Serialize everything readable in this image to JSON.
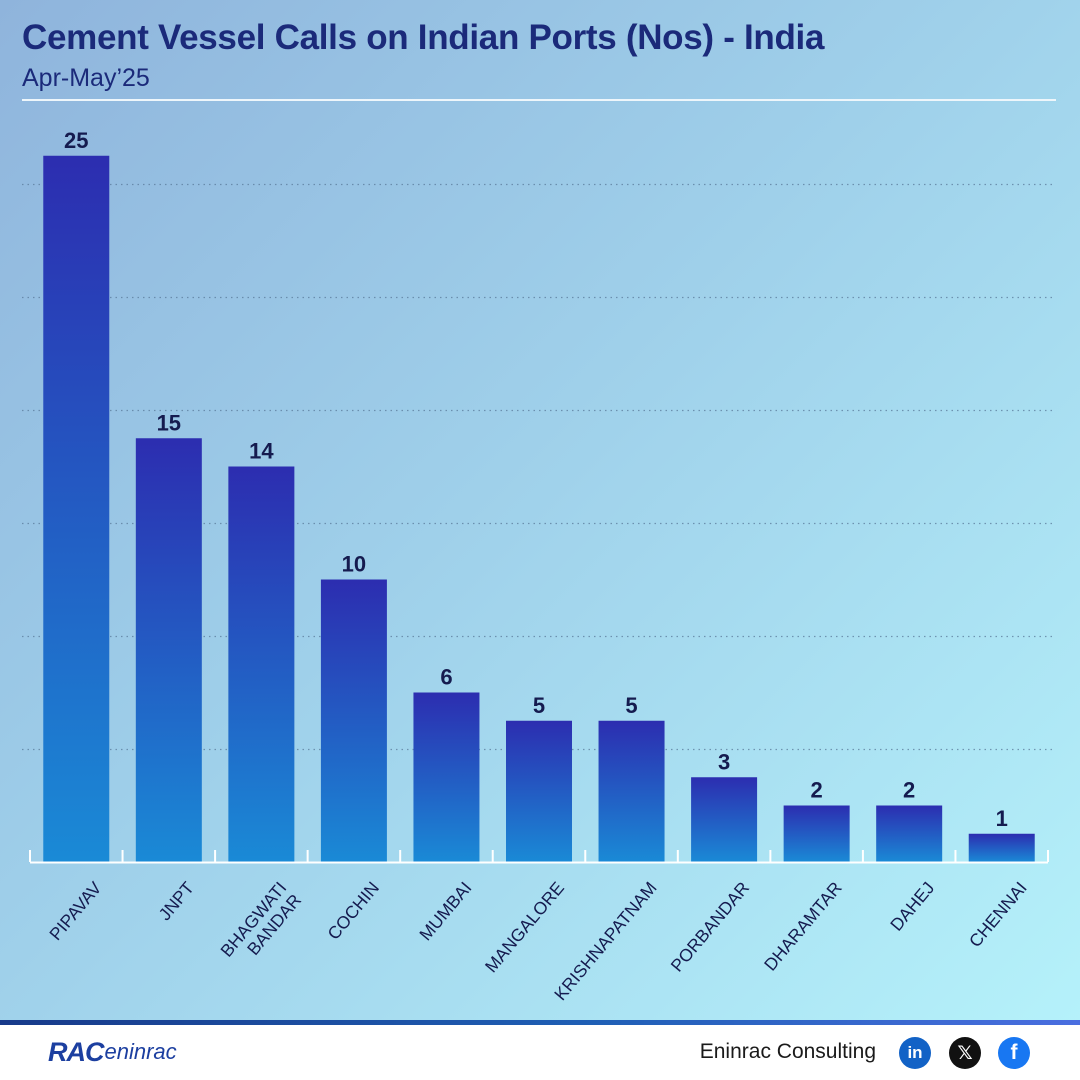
{
  "header": {
    "title": "Cement Vessel Calls on Indian Ports (Nos) - India",
    "subtitle": "Apr-May’25"
  },
  "chart_data": {
    "type": "bar",
    "title": "Cement Vessel Calls on Indian Ports (Nos) - India",
    "subtitle": "Apr-May’25",
    "xlabel": "",
    "ylabel": "",
    "categories": [
      "PIPAVAV",
      "JNPT",
      "BHAGWATI BANDAR",
      "COCHIN",
      "MUMBAI",
      "MANGALORE",
      "KRISHNAPATNAM",
      "PORBANDAR",
      "DHARAMTAR",
      "DAHEJ",
      "CHENNAI"
    ],
    "category_lines": [
      [
        "PIPAVAV"
      ],
      [
        "JNPT"
      ],
      [
        "BHAGWATI",
        "BANDAR"
      ],
      [
        "COCHIN"
      ],
      [
        "MUMBAI"
      ],
      [
        "MANGALORE"
      ],
      [
        "KRISHNAPATNAM"
      ],
      [
        "PORBANDAR"
      ],
      [
        "DHARAMTAR"
      ],
      [
        "DAHEJ"
      ],
      [
        "CHENNAI"
      ]
    ],
    "values": [
      25,
      15,
      14,
      10,
      6,
      5,
      5,
      3,
      2,
      2,
      1
    ],
    "ylim": [
      0,
      26
    ],
    "grid": true,
    "legend": "none",
    "colors": {
      "bar_top": "#2c2db0",
      "bar_bottom": "#1a8ad6",
      "label": "#151b4f",
      "grid": "#5a7a9a"
    }
  },
  "footer": {
    "logo_rac": "RAC",
    "logo_eninrac": "eninrac",
    "company": "Eninrac Consulting",
    "social": [
      {
        "icon": "linkedin-icon",
        "glyph": "in"
      },
      {
        "icon": "x-icon",
        "glyph": "𝕏"
      },
      {
        "icon": "facebook-icon",
        "glyph": "f"
      }
    ]
  }
}
